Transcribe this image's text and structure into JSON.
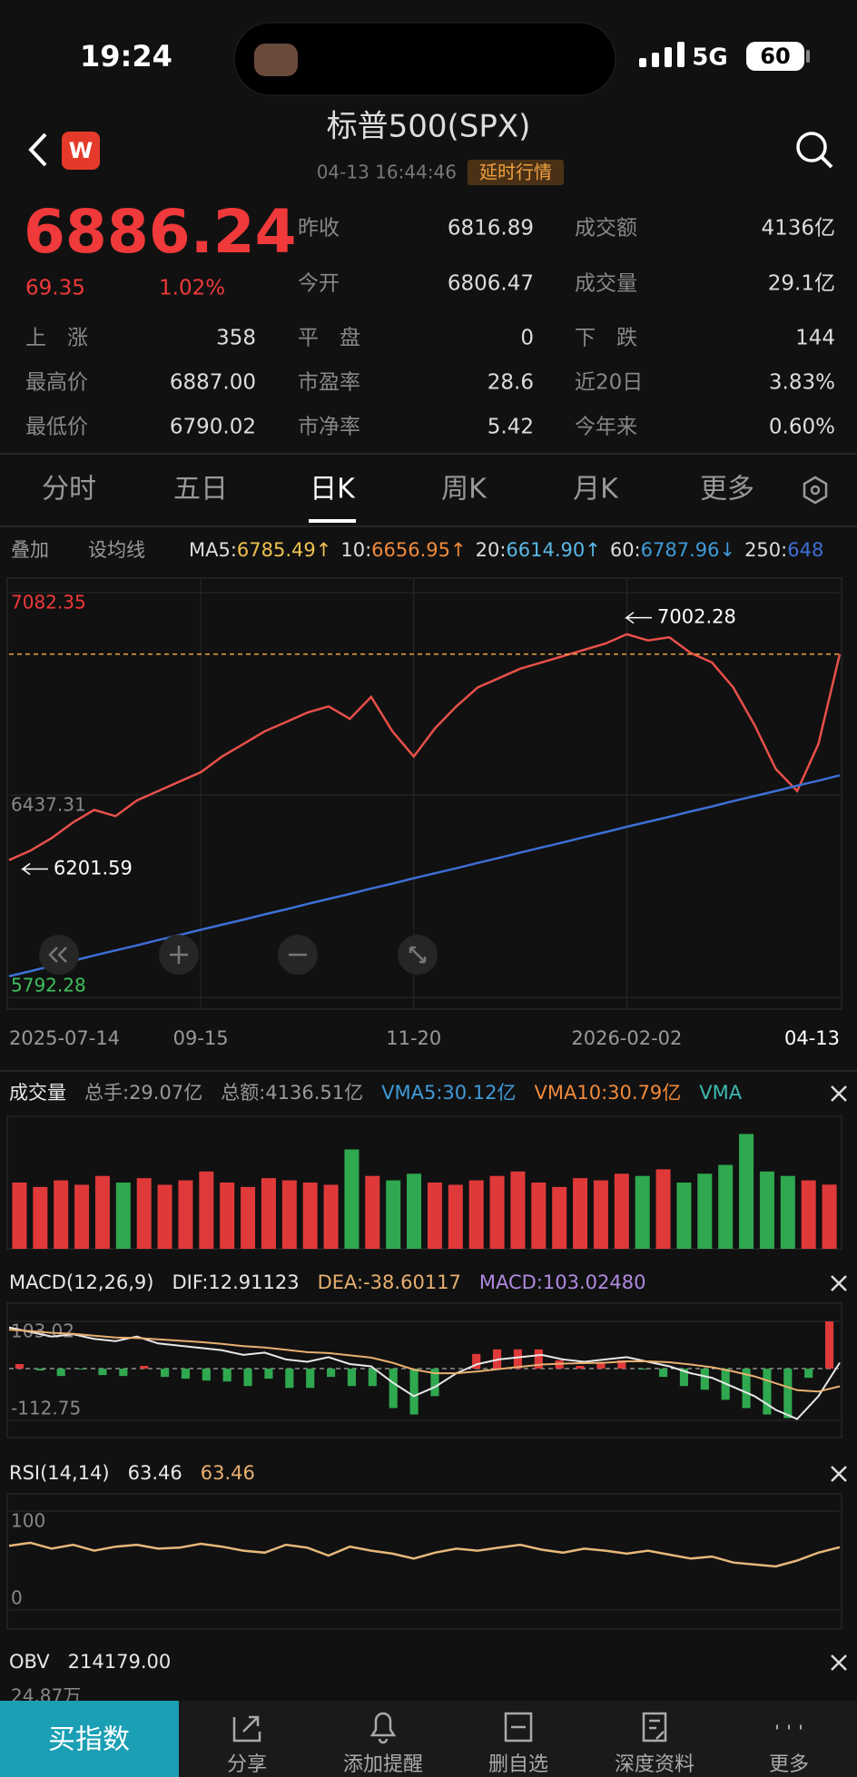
{
  "status_bar": {
    "time": "19:24",
    "network": "5G",
    "battery": "60"
  },
  "header": {
    "logo": "W",
    "title": "标普500(SPX)",
    "timestamp": "04-13 16:44:46",
    "badge": "延时行情"
  },
  "quote": {
    "price": "6886.24",
    "change": "69.35",
    "change_pct": "1.02%",
    "stats": [
      {
        "label": "昨收",
        "value": "6816.89"
      },
      {
        "label": "成交额",
        "value": "4136亿"
      },
      {
        "label": "今开",
        "value": "6806.47"
      },
      {
        "label": "成交量",
        "value": "29.1亿"
      },
      {
        "label": "上　涨",
        "value": "358"
      },
      {
        "label": "平　盘",
        "value": "0"
      },
      {
        "label": "下　跌",
        "value": "144"
      },
      {
        "label": "最高价",
        "value": "6887.00"
      },
      {
        "label": "市盈率",
        "value": "28.6"
      },
      {
        "label": "近20日",
        "value": "3.83%"
      },
      {
        "label": "最低价",
        "value": "6790.02"
      },
      {
        "label": "市净率",
        "value": "5.42"
      },
      {
        "label": "今年来",
        "value": "0.60%"
      }
    ]
  },
  "tabs": [
    "分时",
    "五日",
    "日K",
    "周K",
    "月K",
    "更多"
  ],
  "active_tab": 2,
  "ma_bar": {
    "buttons": [
      "叠加",
      "设均线"
    ],
    "items": [
      {
        "name": "MA5:",
        "value": "6785.49↑",
        "color": "#f0c050"
      },
      {
        "name": "10:",
        "value": "6656.95↑",
        "color": "#f08a3c"
      },
      {
        "name": "20:",
        "value": "6614.90↑",
        "color": "#5ab8e8"
      },
      {
        "name": "60:",
        "value": "6787.96↓",
        "color": "#3f9bd8"
      },
      {
        "name": "250:",
        "value": "648",
        "color": "#3d6fd6"
      }
    ]
  },
  "panels": [
    {
      "items": [
        {
          "text": "成交量",
          "color": "#e8e8e8"
        },
        {
          "text": "总手:29.07亿",
          "color": "#999999"
        },
        {
          "text": "总额:4136.51亿",
          "color": "#999999"
        },
        {
          "text": "VMA5:30.12亿",
          "color": "#3f9bd8"
        },
        {
          "text": "VMA10:30.79亿",
          "color": "#f08a3c"
        },
        {
          "text": "VMA",
          "color": "#3fb8b0"
        }
      ]
    },
    {
      "items": [
        {
          "text": "MACD(12,26,9)",
          "color": "#e8e8e8"
        },
        {
          "text": "DIF:12.91123",
          "color": "#e8e8e8"
        },
        {
          "text": "DEA:-38.60117",
          "color": "#e8b070"
        },
        {
          "text": "MACD:103.02480",
          "color": "#b08ae0"
        }
      ]
    },
    {
      "items": [
        {
          "text": "RSI(14,14)",
          "color": "#e8e8e8"
        },
        {
          "text": "63.46",
          "color": "#e8e8e8"
        },
        {
          "text": "63.46",
          "color": "#e8b070"
        }
      ]
    },
    {
      "items": [
        {
          "text": "OBV",
          "color": "#e8e8e8"
        },
        {
          "text": "214179.00",
          "color": "#e8e8e8"
        }
      ],
      "sub_label": "24.87万"
    }
  ],
  "bottom_bar": {
    "primary": "买指数",
    "items": [
      "分享",
      "添加提醒",
      "删自选",
      "深度资料",
      "更多"
    ]
  },
  "chart_data": [
    {
      "type": "line",
      "categories": [
        "2025-07-14",
        null,
        null,
        null,
        null,
        null,
        null,
        null,
        null,
        "09-15",
        null,
        null,
        null,
        null,
        null,
        null,
        null,
        null,
        null,
        "11-20",
        null,
        null,
        null,
        null,
        null,
        null,
        null,
        null,
        null,
        "2026-02-02",
        null,
        null,
        null,
        null,
        null,
        null,
        null,
        null,
        null,
        "04-13"
      ],
      "series": [
        {
          "color": "#e8504a",
          "values": [
            6230,
            6260,
            6300,
            6350,
            6390,
            6370,
            6420,
            6450,
            6480,
            6510,
            6560,
            6600,
            6640,
            6670,
            6700,
            6720,
            6680,
            6750,
            6640,
            6560,
            6650,
            6720,
            6780,
            6810,
            6840,
            6860,
            6880,
            6900,
            6920,
            6950,
            6930,
            6940,
            6890,
            6860,
            6780,
            6660,
            6520,
            6450,
            6600,
            6886.24
          ]
        },
        {
          "color": "#3d6fd6",
          "values": [
            5860,
            5876,
            5893,
            5909,
            5926,
            5942,
            5958,
            5975,
            5991,
            6008,
            6024,
            6040,
            6057,
            6073,
            6090,
            6106,
            6122,
            6139,
            6155,
            6172,
            6188,
            6204,
            6221,
            6237,
            6254,
            6270,
            6286,
            6303,
            6319,
            6336,
            6352,
            6368,
            6385,
            6401,
            6418,
            6434,
            6450,
            6467,
            6483,
            6500
          ]
        }
      ],
      "ylim": [
        5792.28,
        7082.35
      ],
      "yticks": [
        5792.28,
        6437.31,
        7082.35
      ],
      "annotations": [
        7002.28,
        6201.59
      ],
      "grid": true
    },
    {
      "type": "bar",
      "values": [
        30,
        28,
        31,
        29,
        33,
        30,
        32,
        29,
        31,
        35,
        30,
        28,
        32,
        31,
        30,
        29,
        45,
        33,
        31,
        34,
        30,
        29,
        31,
        33,
        35,
        30,
        28,
        32,
        31,
        34,
        33,
        36,
        30,
        34,
        38,
        52,
        35,
        33,
        31,
        29.07
      ],
      "ylim": [
        0,
        60
      ],
      "up_color": "#e0393a",
      "down_color": "#2fa84f"
    },
    {
      "type": "macd",
      "series": [
        {
          "color": "#e8e8e8",
          "values": [
            90,
            80,
            70,
            75,
            65,
            60,
            70,
            55,
            50,
            45,
            40,
            30,
            35,
            20,
            15,
            25,
            10,
            5,
            -30,
            -60,
            -40,
            -10,
            10,
            20,
            25,
            30,
            20,
            15,
            20,
            25,
            15,
            5,
            -10,
            -20,
            -40,
            -60,
            -90,
            -110,
            -60,
            12.91
          ]
        },
        {
          "color": "#e8b070",
          "values": [
            85,
            82,
            78,
            76,
            72,
            68,
            67,
            64,
            61,
            58,
            54,
            49,
            46,
            41,
            36,
            34,
            29,
            24,
            13,
            -2,
            -10,
            -10,
            -6,
            -1,
            4,
            9,
            11,
            12,
            13,
            16,
            16,
            14,
            9,
            3,
            -6,
            -17,
            -32,
            -47,
            -50,
            -38.6
          ]
        }
      ],
      "histogram": [
        10,
        -4,
        -16,
        -2,
        -14,
        -16,
        6,
        -18,
        -22,
        -26,
        -28,
        -38,
        -22,
        -42,
        -42,
        -18,
        -38,
        -38,
        -86,
        -100,
        -60,
        0,
        32,
        42,
        42,
        42,
        18,
        6,
        14,
        18,
        -2,
        -18,
        -38,
        -46,
        -68,
        -86,
        -100,
        -108,
        -20,
        103.02
      ],
      "ylim": [
        -112.75,
        103.02
      ],
      "yticks": [
        -112.75,
        103.02
      ],
      "up_color": "#e0393a",
      "down_color": "#2fa84f"
    },
    {
      "type": "line",
      "values": [
        65,
        68,
        62,
        66,
        60,
        64,
        66,
        62,
        63,
        67,
        64,
        60,
        58,
        66,
        63,
        55,
        64,
        60,
        57,
        52,
        58,
        62,
        60,
        63,
        66,
        61,
        58,
        62,
        60,
        57,
        60,
        56,
        52,
        54,
        48,
        46,
        44,
        50,
        58,
        63.46
      ],
      "color": "#e6b87a",
      "ylim": [
        0,
        100
      ],
      "yticks": [
        0,
        100
      ]
    }
  ]
}
